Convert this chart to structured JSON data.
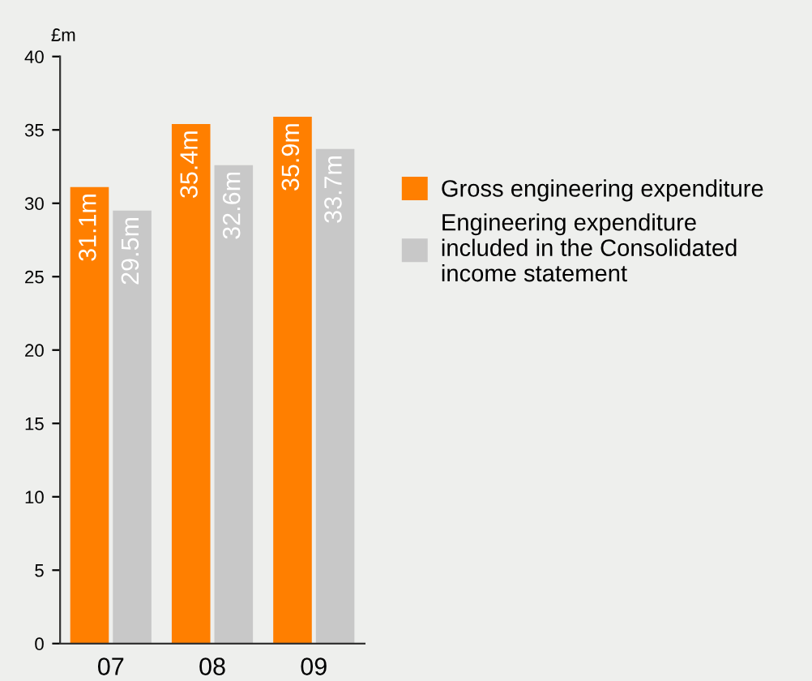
{
  "chart_data": {
    "type": "bar",
    "ylabel": "£m",
    "categories": [
      "07",
      "08",
      "09"
    ],
    "series": [
      {
        "name": "Gross engineering expenditure",
        "color": "#ff7f00",
        "values": [
          31.1,
          35.4,
          35.9
        ],
        "value_labels": [
          "31.1m",
          "35.4m",
          "35.9m"
        ]
      },
      {
        "name": "Engineering expenditure\nincluded in the Consolidated\nincome statement",
        "color": "#c8c8c8",
        "values": [
          29.5,
          32.6,
          33.7
        ],
        "value_labels": [
          "29.5m",
          "32.6m",
          "33.7m"
        ]
      }
    ],
    "ylim": [
      0,
      40
    ],
    "yticks": [
      0,
      5,
      10,
      15,
      20,
      25,
      30,
      35,
      40
    ],
    "grid": false,
    "legend": "right"
  }
}
